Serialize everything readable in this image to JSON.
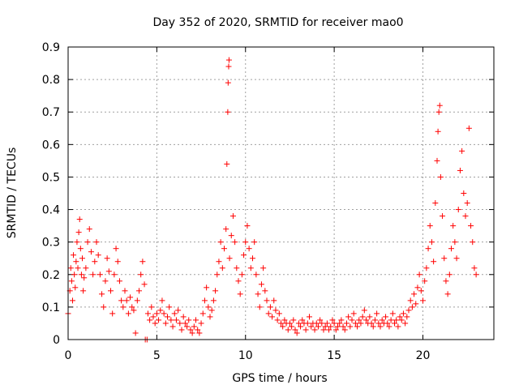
{
  "chart_data": {
    "type": "scatter",
    "title": "Day 352 of 2020, SRMTID for receiver mao0",
    "xlabel": "GPS time / hours",
    "ylabel": "SRMTID / TECUs",
    "xlim": [
      0,
      24
    ],
    "ylim": [
      0,
      0.9
    ],
    "xticks": [
      0,
      5,
      10,
      15,
      20
    ],
    "yticks": [
      0,
      0.1,
      0.2,
      0.3,
      0.4,
      0.5,
      0.6,
      0.7,
      0.8,
      0.9
    ],
    "xtick_labels": [
      "0",
      "5",
      "10",
      "15",
      "20"
    ],
    "ytick_labels": [
      "0",
      "0.1",
      "0.2",
      "0.3",
      "0.4",
      "0.5",
      "0.6",
      "0.7",
      "0.8",
      "0.9"
    ],
    "grid": true,
    "marker": "+",
    "color": "#ff0000",
    "series": [
      {
        "name": "SRMTID",
        "points": [
          [
            0.0,
            0.08
          ],
          [
            0.1,
            0.15
          ],
          [
            0.15,
            0.22
          ],
          [
            0.2,
            0.18
          ],
          [
            0.25,
            0.12
          ],
          [
            0.3,
            0.26
          ],
          [
            0.35,
            0.2
          ],
          [
            0.4,
            0.16
          ],
          [
            0.45,
            0.24
          ],
          [
            0.5,
            0.3
          ],
          [
            0.55,
            0.22
          ],
          [
            0.6,
            0.33
          ],
          [
            0.65,
            0.37
          ],
          [
            0.7,
            0.28
          ],
          [
            0.75,
            0.2
          ],
          [
            0.8,
            0.25
          ],
          [
            0.85,
            0.15
          ],
          [
            0.9,
            0.19
          ],
          [
            1.0,
            0.22
          ],
          [
            1.1,
            0.3
          ],
          [
            1.2,
            0.34
          ],
          [
            1.3,
            0.27
          ],
          [
            1.4,
            0.2
          ],
          [
            1.5,
            0.24
          ],
          [
            1.6,
            0.3
          ],
          [
            1.7,
            0.26
          ],
          [
            1.8,
            0.2
          ],
          [
            1.9,
            0.14
          ],
          [
            2.0,
            0.1
          ],
          [
            2.1,
            0.18
          ],
          [
            2.2,
            0.25
          ],
          [
            2.3,
            0.21
          ],
          [
            2.4,
            0.15
          ],
          [
            2.5,
            0.08
          ],
          [
            2.6,
            0.2
          ],
          [
            2.7,
            0.28
          ],
          [
            2.8,
            0.24
          ],
          [
            2.9,
            0.18
          ],
          [
            3.0,
            0.12
          ],
          [
            3.1,
            0.1
          ],
          [
            3.2,
            0.15
          ],
          [
            3.3,
            0.12
          ],
          [
            3.4,
            0.08
          ],
          [
            3.5,
            0.13
          ],
          [
            3.6,
            0.1
          ],
          [
            3.7,
            0.09
          ],
          [
            3.8,
            0.02
          ],
          [
            3.9,
            0.12
          ],
          [
            4.0,
            0.15
          ],
          [
            4.1,
            0.2
          ],
          [
            4.2,
            0.24
          ],
          [
            4.3,
            0.17
          ],
          [
            4.35,
            0.0
          ],
          [
            4.45,
            0.0
          ],
          [
            4.5,
            0.08
          ],
          [
            4.6,
            0.06
          ],
          [
            4.7,
            0.1
          ],
          [
            4.8,
            0.07
          ],
          [
            4.9,
            0.05
          ],
          [
            5.0,
            0.08
          ],
          [
            5.1,
            0.06
          ],
          [
            5.2,
            0.09
          ],
          [
            5.3,
            0.12
          ],
          [
            5.4,
            0.08
          ],
          [
            5.5,
            0.05
          ],
          [
            5.6,
            0.07
          ],
          [
            5.7,
            0.1
          ],
          [
            5.8,
            0.06
          ],
          [
            5.9,
            0.04
          ],
          [
            6.0,
            0.08
          ],
          [
            6.1,
            0.06
          ],
          [
            6.2,
            0.09
          ],
          [
            6.3,
            0.05
          ],
          [
            6.4,
            0.03
          ],
          [
            6.5,
            0.07
          ],
          [
            6.6,
            0.05
          ],
          [
            6.7,
            0.04
          ],
          [
            6.8,
            0.06
          ],
          [
            6.9,
            0.03
          ],
          [
            7.0,
            0.02
          ],
          [
            7.1,
            0.04
          ],
          [
            7.2,
            0.06
          ],
          [
            7.3,
            0.03
          ],
          [
            7.4,
            0.02
          ],
          [
            7.5,
            0.05
          ],
          [
            7.6,
            0.08
          ],
          [
            7.7,
            0.12
          ],
          [
            7.8,
            0.16
          ],
          [
            7.9,
            0.1
          ],
          [
            8.0,
            0.07
          ],
          [
            8.1,
            0.09
          ],
          [
            8.2,
            0.12
          ],
          [
            8.3,
            0.15
          ],
          [
            8.4,
            0.2
          ],
          [
            8.5,
            0.24
          ],
          [
            8.6,
            0.3
          ],
          [
            8.7,
            0.22
          ],
          [
            8.8,
            0.28
          ],
          [
            8.9,
            0.34
          ],
          [
            8.95,
            0.54
          ],
          [
            9.0,
            0.7
          ],
          [
            9.02,
            0.79
          ],
          [
            9.05,
            0.84
          ],
          [
            9.07,
            0.86
          ],
          [
            9.1,
            0.25
          ],
          [
            9.2,
            0.32
          ],
          [
            9.3,
            0.38
          ],
          [
            9.4,
            0.3
          ],
          [
            9.5,
            0.22
          ],
          [
            9.6,
            0.18
          ],
          [
            9.7,
            0.14
          ],
          [
            9.8,
            0.2
          ],
          [
            9.9,
            0.26
          ],
          [
            10.0,
            0.3
          ],
          [
            10.1,
            0.35
          ],
          [
            10.2,
            0.28
          ],
          [
            10.3,
            0.22
          ],
          [
            10.4,
            0.25
          ],
          [
            10.5,
            0.3
          ],
          [
            10.6,
            0.2
          ],
          [
            10.7,
            0.14
          ],
          [
            10.8,
            0.1
          ],
          [
            10.9,
            0.17
          ],
          [
            11.0,
            0.22
          ],
          [
            11.1,
            0.15
          ],
          [
            11.2,
            0.12
          ],
          [
            11.3,
            0.08
          ],
          [
            11.4,
            0.1
          ],
          [
            11.5,
            0.07
          ],
          [
            11.6,
            0.12
          ],
          [
            11.7,
            0.09
          ],
          [
            11.8,
            0.06
          ],
          [
            11.9,
            0.08
          ],
          [
            12.0,
            0.05
          ],
          [
            12.1,
            0.04
          ],
          [
            12.2,
            0.06
          ],
          [
            12.3,
            0.05
          ],
          [
            12.4,
            0.03
          ],
          [
            12.5,
            0.05
          ],
          [
            12.6,
            0.04
          ],
          [
            12.7,
            0.06
          ],
          [
            12.8,
            0.03
          ],
          [
            12.9,
            0.02
          ],
          [
            13.0,
            0.05
          ],
          [
            13.1,
            0.04
          ],
          [
            13.2,
            0.06
          ],
          [
            13.3,
            0.05
          ],
          [
            13.4,
            0.03
          ],
          [
            13.5,
            0.05
          ],
          [
            13.6,
            0.07
          ],
          [
            13.7,
            0.04
          ],
          [
            13.8,
            0.05
          ],
          [
            13.9,
            0.03
          ],
          [
            14.0,
            0.05
          ],
          [
            14.1,
            0.04
          ],
          [
            14.2,
            0.06
          ],
          [
            14.3,
            0.05
          ],
          [
            14.4,
            0.03
          ],
          [
            14.5,
            0.04
          ],
          [
            14.6,
            0.05
          ],
          [
            14.7,
            0.03
          ],
          [
            14.8,
            0.04
          ],
          [
            14.9,
            0.06
          ],
          [
            15.0,
            0.05
          ],
          [
            15.1,
            0.03
          ],
          [
            15.2,
            0.04
          ],
          [
            15.3,
            0.05
          ],
          [
            15.4,
            0.06
          ],
          [
            15.5,
            0.04
          ],
          [
            15.6,
            0.03
          ],
          [
            15.7,
            0.05
          ],
          [
            15.8,
            0.07
          ],
          [
            15.9,
            0.04
          ],
          [
            16.0,
            0.06
          ],
          [
            16.1,
            0.08
          ],
          [
            16.2,
            0.05
          ],
          [
            16.3,
            0.04
          ],
          [
            16.4,
            0.06
          ],
          [
            16.5,
            0.05
          ],
          [
            16.6,
            0.07
          ],
          [
            16.7,
            0.09
          ],
          [
            16.8,
            0.06
          ],
          [
            16.9,
            0.05
          ],
          [
            17.0,
            0.07
          ],
          [
            17.1,
            0.05
          ],
          [
            17.2,
            0.04
          ],
          [
            17.3,
            0.06
          ],
          [
            17.4,
            0.08
          ],
          [
            17.5,
            0.05
          ],
          [
            17.6,
            0.04
          ],
          [
            17.7,
            0.06
          ],
          [
            17.8,
            0.05
          ],
          [
            17.9,
            0.07
          ],
          [
            18.0,
            0.05
          ],
          [
            18.1,
            0.04
          ],
          [
            18.2,
            0.06
          ],
          [
            18.3,
            0.08
          ],
          [
            18.4,
            0.05
          ],
          [
            18.5,
            0.06
          ],
          [
            18.6,
            0.04
          ],
          [
            18.7,
            0.07
          ],
          [
            18.8,
            0.06
          ],
          [
            18.9,
            0.08
          ],
          [
            19.0,
            0.05
          ],
          [
            19.1,
            0.07
          ],
          [
            19.2,
            0.09
          ],
          [
            19.3,
            0.12
          ],
          [
            19.4,
            0.1
          ],
          [
            19.5,
            0.14
          ],
          [
            19.6,
            0.11
          ],
          [
            19.7,
            0.16
          ],
          [
            19.8,
            0.2
          ],
          [
            19.9,
            0.15
          ],
          [
            20.0,
            0.12
          ],
          [
            20.1,
            0.18
          ],
          [
            20.2,
            0.22
          ],
          [
            20.3,
            0.28
          ],
          [
            20.4,
            0.35
          ],
          [
            20.5,
            0.3
          ],
          [
            20.6,
            0.24
          ],
          [
            20.7,
            0.42
          ],
          [
            20.8,
            0.55
          ],
          [
            20.85,
            0.64
          ],
          [
            20.9,
            0.7
          ],
          [
            20.95,
            0.72
          ],
          [
            21.0,
            0.5
          ],
          [
            21.1,
            0.38
          ],
          [
            21.2,
            0.25
          ],
          [
            21.3,
            0.18
          ],
          [
            21.4,
            0.14
          ],
          [
            21.5,
            0.2
          ],
          [
            21.6,
            0.28
          ],
          [
            21.7,
            0.35
          ],
          [
            21.8,
            0.3
          ],
          [
            21.9,
            0.25
          ],
          [
            22.0,
            0.4
          ],
          [
            22.1,
            0.52
          ],
          [
            22.2,
            0.58
          ],
          [
            22.3,
            0.45
          ],
          [
            22.4,
            0.38
          ],
          [
            22.5,
            0.42
          ],
          [
            22.6,
            0.65
          ],
          [
            22.7,
            0.35
          ],
          [
            22.8,
            0.3
          ],
          [
            22.9,
            0.22
          ],
          [
            23.0,
            0.2
          ]
        ]
      }
    ]
  }
}
